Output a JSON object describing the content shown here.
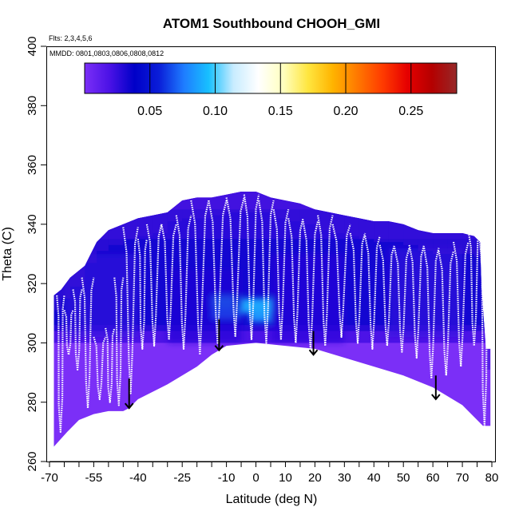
{
  "chart_data": {
    "type": "heatmap",
    "title": "ATOM1 Southbound CHOOH_GMI",
    "annotations": {
      "flights": "Flts: 2,3,4,5,6",
      "dates": "MMDD: 0801,0803,0806,0808,0812"
    },
    "xlabel": "Latitude (deg N)",
    "ylabel": "Theta (C)",
    "xlim": [
      -70,
      80
    ],
    "ylim": [
      260,
      400
    ],
    "x_ticks": [
      -70,
      -55,
      -40,
      -25,
      -10,
      0,
      10,
      20,
      30,
      40,
      50,
      60,
      70,
      80
    ],
    "x_tick_labels": [
      "-70",
      "-55",
      "-40",
      "-25",
      "-10",
      "0",
      "10",
      "20",
      "30",
      "40",
      "50",
      "60",
      "70",
      "80"
    ],
    "x_minor_ticks": [
      -65,
      -60,
      -50,
      -45,
      -35,
      -30,
      -20,
      -15,
      -5,
      5,
      15,
      25,
      35,
      45,
      55,
      65,
      75
    ],
    "y_ticks": [
      260,
      280,
      300,
      320,
      340,
      360,
      380,
      400
    ],
    "y_tick_labels": [
      "260",
      "280",
      "300",
      "320",
      "340",
      "360",
      "380",
      "400"
    ],
    "colorbar": {
      "range": [
        0,
        0.285
      ],
      "ticks": [
        0.05,
        0.1,
        0.15,
        0.2,
        0.25
      ],
      "tick_labels": [
        "0.05",
        "0.10",
        "0.15",
        "0.20",
        "0.25"
      ],
      "colors": [
        "#7b2ff7",
        "#4b12e6",
        "#0000c8",
        "#0a1ed8",
        "#1e7cff",
        "#18c0ff",
        "#c8ecff",
        "#ffffff",
        "#ffffc0",
        "#ffe640",
        "#ffb400",
        "#ff7800",
        "#ff3c00",
        "#e60000",
        "#b40000",
        "#962828"
      ]
    },
    "domain": {
      "top_boundary": [
        [
          -68.5,
          316
        ],
        [
          -66,
          318
        ],
        [
          -63,
          322
        ],
        [
          -58,
          326
        ],
        [
          -54,
          334
        ],
        [
          -50,
          338
        ],
        [
          -45,
          340
        ],
        [
          -40,
          342
        ],
        [
          -35,
          343
        ],
        [
          -30,
          344
        ],
        [
          -25,
          348
        ],
        [
          -20,
          349
        ],
        [
          -15,
          349
        ],
        [
          -10,
          350
        ],
        [
          -5,
          351
        ],
        [
          0,
          351
        ],
        [
          5,
          349
        ],
        [
          10,
          348
        ],
        [
          15,
          347
        ],
        [
          20,
          345
        ],
        [
          25,
          344
        ],
        [
          30,
          343
        ],
        [
          35,
          342
        ],
        [
          40,
          341
        ],
        [
          45,
          341
        ],
        [
          50,
          340
        ],
        [
          55,
          338
        ],
        [
          60,
          337
        ],
        [
          65,
          337
        ],
        [
          70,
          337
        ],
        [
          74,
          336
        ],
        [
          76,
          334
        ],
        [
          76.5,
          318
        ],
        [
          78,
          298
        ],
        [
          79.5,
          298
        ]
      ],
      "bottom_boundary": [
        [
          -68.5,
          265
        ],
        [
          -64,
          270
        ],
        [
          -60,
          274
        ],
        [
          -55,
          276
        ],
        [
          -50,
          277
        ],
        [
          -45,
          277
        ],
        [
          -43,
          278
        ],
        [
          -40,
          281
        ],
        [
          -30,
          286
        ],
        [
          -20,
          292
        ],
        [
          -15,
          296
        ],
        [
          -10,
          299
        ],
        [
          0,
          300
        ],
        [
          10,
          299
        ],
        [
          20,
          298
        ],
        [
          30,
          295
        ],
        [
          40,
          292
        ],
        [
          50,
          289
        ],
        [
          60,
          285
        ],
        [
          70,
          279
        ],
        [
          77,
          272
        ],
        [
          79.5,
          272
        ]
      ]
    },
    "enhanced_regions": [
      {
        "lat": [
          -15,
          -7
        ],
        "theta": [
          311,
          316
        ],
        "value": 0.09
      },
      {
        "lat": [
          -15,
          -5
        ],
        "theta": [
          308,
          312
        ],
        "value": 0.08
      },
      {
        "lat": [
          -5,
          6
        ],
        "theta": [
          310,
          315
        ],
        "value": 0.09
      },
      {
        "lat": [
          -2,
          5
        ],
        "theta": [
          307,
          310
        ],
        "value": 0.085
      },
      {
        "lat": [
          -30,
          -5
        ],
        "theta": [
          300,
          325
        ],
        "value": 0.03
      },
      {
        "lat": [
          -65,
          -40
        ],
        "theta": [
          302,
          330
        ],
        "value": 0.025
      },
      {
        "lat": [
          5,
          30
        ],
        "theta": [
          300,
          330
        ],
        "value": 0.028
      },
      {
        "lat": [
          45,
          70
        ],
        "theta": [
          302,
          332
        ],
        "value": 0.025
      }
    ],
    "arrows": [
      {
        "lat": -43,
        "theta_top": 288,
        "theta_tip": 278
      },
      {
        "lat": -12.5,
        "theta_top": 308,
        "theta_tip": 297.5
      },
      {
        "lat": 19.5,
        "theta_top": 304,
        "theta_tip": 296
      },
      {
        "lat": 61,
        "theta_top": 289,
        "theta_tip": 281
      }
    ],
    "flight_tracks": [
      {
        "from": -67.5,
        "to": -65,
        "low": 270,
        "high": 316
      },
      {
        "from": -65,
        "to": -62,
        "low": 296,
        "high": 311
      },
      {
        "from": -62,
        "to": -59,
        "low": 291,
        "high": 318
      },
      {
        "from": -59,
        "to": -55,
        "low": 278,
        "high": 322
      },
      {
        "from": -55,
        "to": -51,
        "low": 281,
        "high": 302
      },
      {
        "from": -51,
        "to": -48,
        "low": 280,
        "high": 305
      },
      {
        "from": -48,
        "to": -45,
        "low": 279,
        "high": 322
      },
      {
        "from": -45,
        "to": -40,
        "low": 283,
        "high": 339
      },
      {
        "from": -40,
        "to": -37,
        "low": 298,
        "high": 335
      },
      {
        "from": -37,
        "to": -32,
        "low": 299,
        "high": 340
      },
      {
        "from": -32,
        "to": -27,
        "low": 301,
        "high": 340
      },
      {
        "from": -27,
        "to": -22,
        "low": 298,
        "high": 343
      },
      {
        "from": -22,
        "to": -16,
        "low": 296,
        "high": 348
      },
      {
        "from": -16,
        "to": -10,
        "low": 300,
        "high": 348
      },
      {
        "from": -10,
        "to": -4,
        "low": 302,
        "high": 349
      },
      {
        "from": -4,
        "to": 1,
        "low": 301,
        "high": 350
      },
      {
        "from": 1,
        "to": 6,
        "low": 300,
        "high": 348
      },
      {
        "from": 6,
        "to": 11,
        "low": 301,
        "high": 345
      },
      {
        "from": 11,
        "to": 16,
        "low": 300,
        "high": 342
      },
      {
        "from": 16,
        "to": 21,
        "low": 298,
        "high": 341
      },
      {
        "from": 21,
        "to": 26,
        "low": 299,
        "high": 343
      },
      {
        "from": 26,
        "to": 32,
        "low": 302,
        "high": 340
      },
      {
        "from": 32,
        "to": 37,
        "low": 300,
        "high": 337
      },
      {
        "from": 37,
        "to": 42,
        "low": 298,
        "high": 336
      },
      {
        "from": 42,
        "to": 47,
        "low": 299,
        "high": 333
      },
      {
        "from": 47,
        "to": 52,
        "low": 297,
        "high": 332
      },
      {
        "from": 52,
        "to": 57,
        "low": 295,
        "high": 333
      },
      {
        "from": 57,
        "to": 62,
        "low": 288,
        "high": 332
      },
      {
        "from": 62,
        "to": 67,
        "low": 289,
        "high": 331
      },
      {
        "from": 67,
        "to": 72,
        "low": 292,
        "high": 334
      },
      {
        "from": 72,
        "to": 76,
        "low": 299,
        "high": 338
      },
      {
        "from": 76,
        "to": 79,
        "low": 272,
        "high": 334
      }
    ],
    "grid": false,
    "legend": "top-center colorbar"
  }
}
